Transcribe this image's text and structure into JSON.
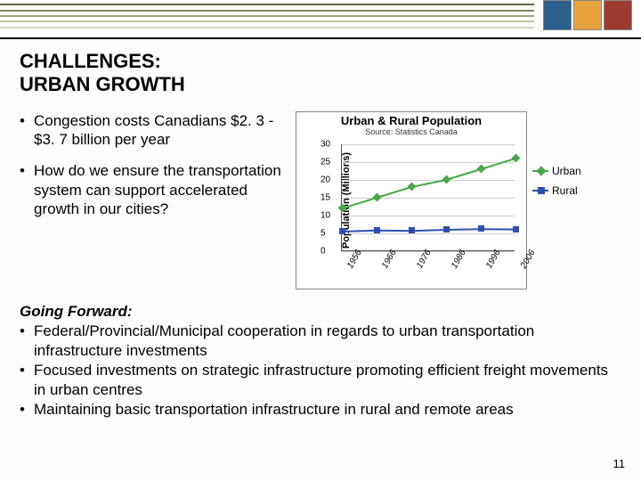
{
  "stripes": [
    "#5b6a42",
    "#7a8a5a",
    "#9aa87a",
    "#b8c39c",
    "#d2d9be"
  ],
  "logo_colors": [
    "#2b5f8c",
    "#e6a23c",
    "#9c3a2e"
  ],
  "title_line1": "CHALLENGES:",
  "title_line2": "URBAN GROWTH",
  "bullets": [
    "Congestion costs Canadians $2. 3 - $3. 7 billion per year",
    "How do we ensure the transportation system can support accelerated growth in our cities?"
  ],
  "going_forward_label": "Going Forward:",
  "going_forward": [
    "Federal/Provincial/Municipal cooperation in regards to urban transportation infrastructure investments",
    "Focused investments on strategic infrastructure promoting efficient freight movements in urban centres",
    "Maintaining basic transportation infrastructure in rural and remote areas"
  ],
  "page_number": "11",
  "chart": {
    "type": "line",
    "title": "Urban & Rural Population",
    "subtitle": "Source: Statistics Canada",
    "ylabel": "Population (Millions)",
    "ylim": [
      0,
      30
    ],
    "ytick_step": 5,
    "x_categories": [
      "1956",
      "1966",
      "1976",
      "1986",
      "1996",
      "2006"
    ],
    "series": [
      {
        "name": "Urban",
        "color": "#4aa84a",
        "marker": "diamond",
        "values": [
          12,
          15,
          18,
          20,
          23,
          26
        ]
      },
      {
        "name": "Rural",
        "color": "#2e4fb0",
        "marker": "square",
        "values": [
          5.5,
          5.8,
          5.7,
          6.0,
          6.2,
          6.1
        ]
      }
    ],
    "grid_color": "#cccccc",
    "background_color": "#ffffff"
  }
}
